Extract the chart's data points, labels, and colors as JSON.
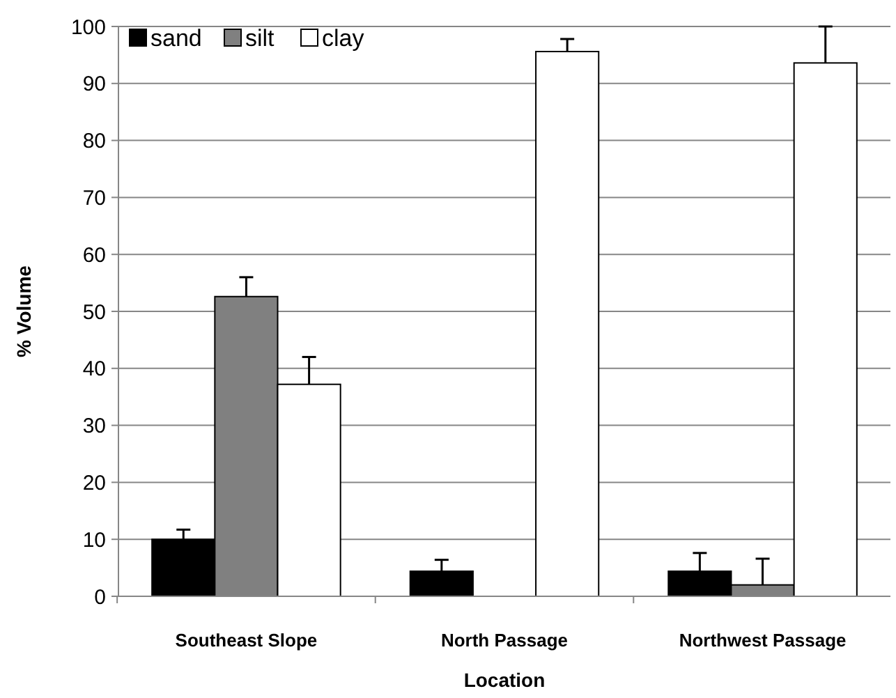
{
  "chart_data": {
    "type": "bar",
    "xlabel": "Location",
    "ylabel": "% Volume",
    "categories": [
      "Southeast Slope",
      "North Passage",
      "Northwest Passage"
    ],
    "series": [
      {
        "name": "sand",
        "color": "#000000",
        "values": [
          10,
          4.4,
          4.4
        ],
        "errors": [
          [
            10,
            11.7
          ],
          [
            4.4,
            6.4
          ],
          [
            4.4,
            7.6
          ]
        ]
      },
      {
        "name": "silt",
        "color": "#808080",
        "values": [
          52.6,
          0,
          2
        ],
        "errors": [
          [
            52.6,
            56
          ],
          null,
          [
            2,
            6.6
          ]
        ]
      },
      {
        "name": "clay",
        "color": "#ffffff",
        "values": [
          37.2,
          95.6,
          93.6
        ],
        "errors": [
          [
            37.2,
            42
          ],
          [
            95.6,
            97.8
          ],
          [
            93.6,
            100
          ]
        ]
      }
    ],
    "ylim": [
      0,
      100
    ],
    "yticks": [
      0,
      10,
      20,
      30,
      40,
      50,
      60,
      70,
      80,
      90,
      100
    ],
    "grid": "y",
    "legend": "top left"
  }
}
